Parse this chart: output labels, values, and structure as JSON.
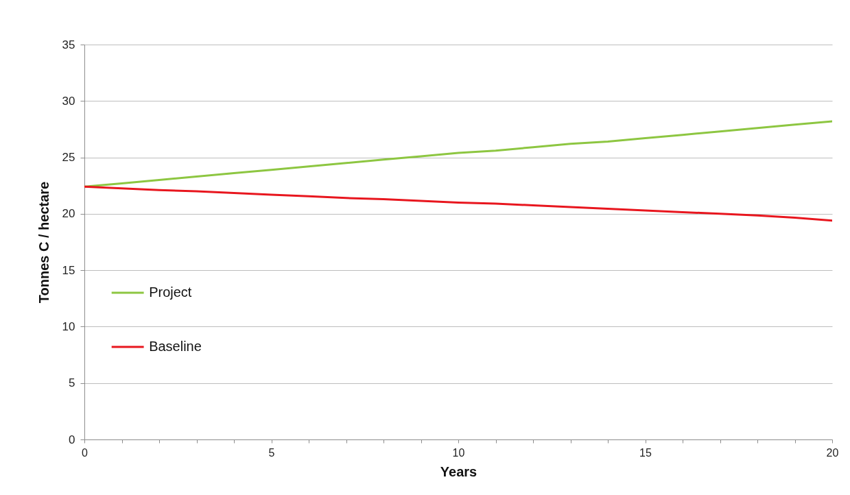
{
  "chart_data": {
    "type": "line",
    "xlabel": "Years",
    "ylabel": "Tonnes C / hectare",
    "x": [
      0,
      1,
      2,
      3,
      4,
      5,
      6,
      7,
      8,
      9,
      10,
      11,
      12,
      13,
      14,
      15,
      16,
      17,
      18,
      19,
      20
    ],
    "series": [
      {
        "name": "Project",
        "color": "#8dc641",
        "values": [
          22.4,
          22.7,
          23.0,
          23.3,
          23.6,
          23.9,
          24.2,
          24.5,
          24.8,
          25.1,
          25.4,
          25.6,
          25.9,
          26.2,
          26.4,
          26.7,
          27.0,
          27.3,
          27.6,
          27.9,
          28.2
        ]
      },
      {
        "name": "Baseline",
        "color": "#e8161e",
        "values": [
          22.4,
          22.25,
          22.1,
          22.0,
          21.85,
          21.7,
          21.55,
          21.4,
          21.3,
          21.15,
          21.0,
          20.9,
          20.75,
          20.6,
          20.45,
          20.3,
          20.15,
          20.0,
          19.85,
          19.65,
          19.4
        ]
      }
    ],
    "xlim": [
      0,
      20
    ],
    "xticks": [
      0,
      {
        "value": 1,
        "label": null
      },
      {
        "value": 2,
        "label": null
      },
      {
        "value": 3,
        "label": null
      },
      {
        "value": 4,
        "label": null
      },
      5,
      {
        "value": 6,
        "label": null
      },
      {
        "value": 7,
        "label": null
      },
      {
        "value": 8,
        "label": null
      },
      {
        "value": 9,
        "label": null
      },
      10,
      {
        "value": 11,
        "label": null
      },
      {
        "value": 12,
        "label": null
      },
      {
        "value": 13,
        "label": null
      },
      {
        "value": 14,
        "label": null
      },
      15,
      {
        "value": 16,
        "label": null
      },
      {
        "value": 17,
        "label": null
      },
      {
        "value": 18,
        "label": null
      },
      {
        "value": 19,
        "label": null
      },
      20
    ],
    "ylim": [
      0,
      35
    ],
    "yticks": [
      0,
      5,
      10,
      15,
      20,
      25,
      30,
      35
    ],
    "grid": "y",
    "legend": "left",
    "marker": "none",
    "line_style": "solid"
  }
}
